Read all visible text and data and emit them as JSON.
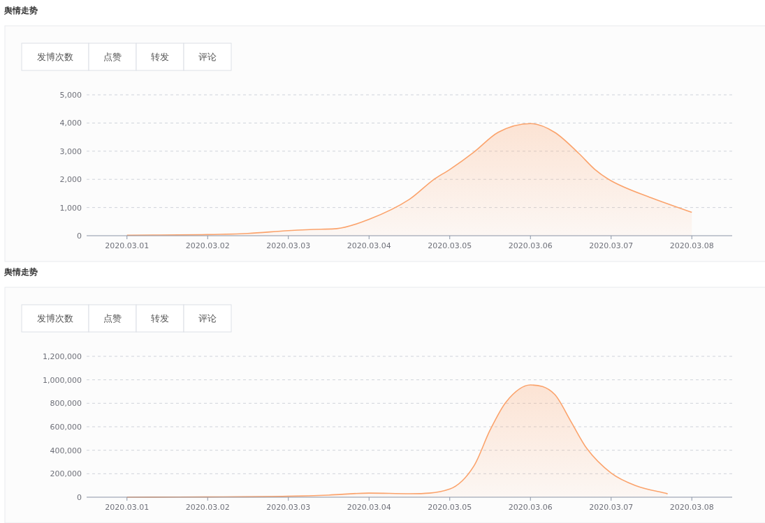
{
  "chart_data": [
    {
      "type": "area",
      "title": "舆情走势",
      "annotations": [
        "发博次数",
        "点赞",
        "转发",
        "评论"
      ],
      "x": [
        "2020-03-01T00:00",
        "2020-03-02T00:00",
        "2020-03-02T12:00",
        "2020-03-03T00:00",
        "2020-03-03T09:36",
        "2020-03-03T14:24",
        "2020-03-04T00:00",
        "2020-03-04T12:00",
        "2020-03-04T19:12",
        "2020-03-05T00:00",
        "2020-03-05T07:12",
        "2020-03-05T14:24",
        "2020-03-06T00:00",
        "2020-03-06T07:12",
        "2020-03-06T14:24",
        "2020-03-06T19:12",
        "2020-03-07T00:00",
        "2020-03-07T12:00",
        "2020-03-08T00:00"
      ],
      "series": [
        {
          "color": "#fba36c",
          "values": [
            20,
            40,
            80,
            180,
            230,
            250,
            580,
            1290,
            1990,
            2350,
            2970,
            3670,
            3980,
            3670,
            2920,
            2350,
            1950,
            1340,
            830
          ]
        }
      ],
      "xlim": [
        "2020-02-29T12:00",
        "2020-03-08T12:00"
      ],
      "xticks": [
        {
          "value": "2020-03-01",
          "label": "2020.03.01"
        },
        {
          "value": "2020-03-02",
          "label": "2020.03.02"
        },
        {
          "value": "2020-03-03",
          "label": "2020.03.03"
        },
        {
          "value": "2020-03-04",
          "label": "2020.03.04"
        },
        {
          "value": "2020-03-05",
          "label": "2020.03.05"
        },
        {
          "value": "2020-03-06",
          "label": "2020.03.06"
        },
        {
          "value": "2020-03-07",
          "label": "2020.03.07"
        },
        {
          "value": "2020-03-08",
          "label": "2020.03.08"
        }
      ],
      "ylim": [
        0,
        5000
      ],
      "yticks": [
        {
          "value": 0,
          "label": "0"
        },
        {
          "value": 1000,
          "label": "1,000"
        },
        {
          "value": 2000,
          "label": "2,000"
        },
        {
          "value": 3000,
          "label": "3,000"
        },
        {
          "value": 4000,
          "label": "4,000"
        },
        {
          "value": 5000,
          "label": "5,000"
        }
      ],
      "grid": "y"
    },
    {
      "type": "area",
      "title": "舆情走势",
      "annotations": [
        "发博次数",
        "点赞",
        "转发",
        "评论"
      ],
      "x": [
        "2020-03-01T00:00",
        "2020-03-02T00:00",
        "2020-03-03T00:00",
        "2020-03-03T12:00",
        "2020-03-04T00:00",
        "2020-03-04T12:00",
        "2020-03-05T00:00",
        "2020-03-05T07:12",
        "2020-03-05T12:00",
        "2020-03-05T16:48",
        "2020-03-06T00:00",
        "2020-03-06T07:12",
        "2020-03-06T12:00",
        "2020-03-06T16:48",
        "2020-03-07T00:00",
        "2020-03-07T07:12",
        "2020-03-07T16:48"
      ],
      "series": [
        {
          "color": "#fba36c",
          "values": [
            0,
            2000,
            8000,
            18000,
            35000,
            30000,
            70000,
            267000,
            572000,
            813000,
            956000,
            876000,
            647000,
            414000,
            206000,
            100000,
            29000
          ]
        }
      ],
      "xlim": [
        "2020-02-29T12:00",
        "2020-03-08T12:00"
      ],
      "xticks": [
        {
          "value": "2020-03-01",
          "label": "2020.03.01"
        },
        {
          "value": "2020-03-02",
          "label": "2020.03.02"
        },
        {
          "value": "2020-03-03",
          "label": "2020.03.03"
        },
        {
          "value": "2020-03-04",
          "label": "2020.03.04"
        },
        {
          "value": "2020-03-05",
          "label": "2020.03.05"
        },
        {
          "value": "2020-03-06",
          "label": "2020.03.06"
        },
        {
          "value": "2020-03-07",
          "label": "2020.03.07"
        },
        {
          "value": "2020-03-08",
          "label": "2020.03.08"
        }
      ],
      "ylim": [
        0,
        1200000
      ],
      "yticks": [
        {
          "value": 0,
          "label": "0"
        },
        {
          "value": 200000,
          "label": "200,000"
        },
        {
          "value": 400000,
          "label": "400,000"
        },
        {
          "value": 600000,
          "label": "600,000"
        },
        {
          "value": 800000,
          "label": "800,000"
        },
        {
          "value": 1000000,
          "label": "1,000,000"
        },
        {
          "value": 1200000,
          "label": "1,200,000"
        }
      ],
      "grid": "y"
    }
  ]
}
